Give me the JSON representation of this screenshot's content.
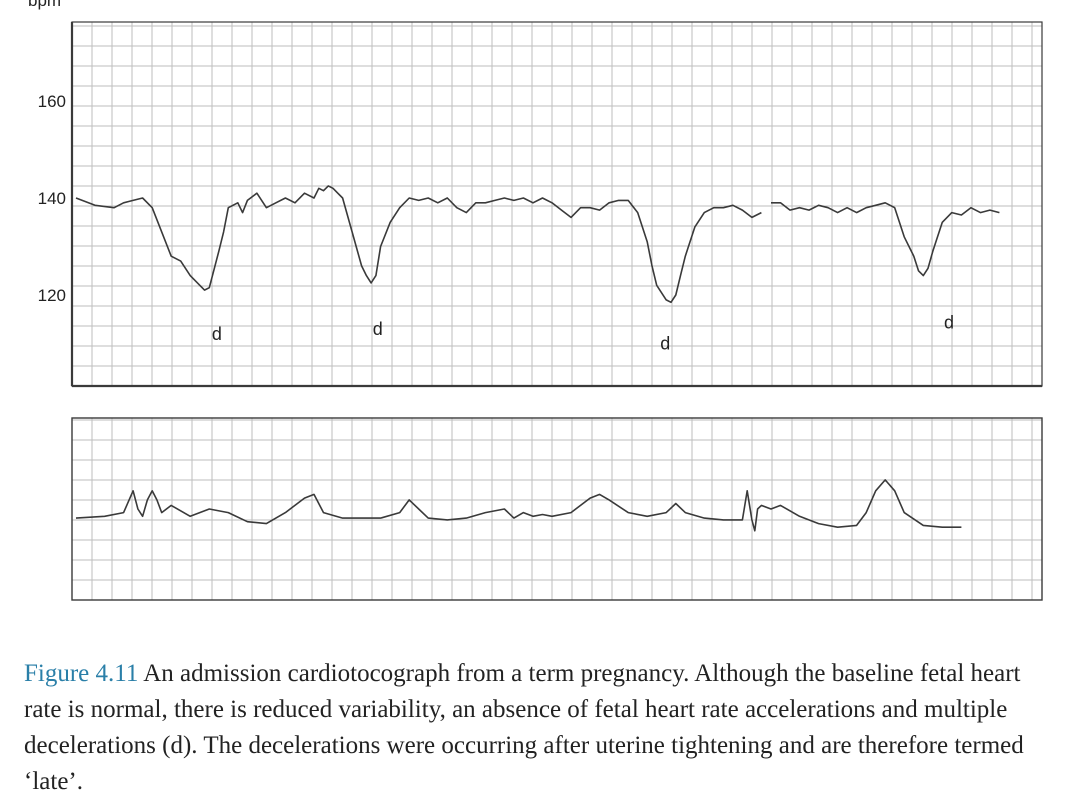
{
  "chart_data": [
    {
      "type": "line",
      "ylabel": "bpm",
      "yticks": [
        120,
        140,
        160
      ],
      "ylim": [
        102,
        176
      ],
      "xlim": [
        0,
        100
      ],
      "grid": true,
      "series": [
        {
          "segments": [
            [
              [
                0,
                140
              ],
              [
                2,
                138.5
              ],
              [
                4,
                138
              ],
              [
                5,
                139
              ],
              [
                6,
                139.5
              ],
              [
                7,
                140
              ],
              [
                8,
                138
              ],
              [
                9,
                133
              ],
              [
                10,
                128
              ],
              [
                11,
                127
              ],
              [
                12,
                124
              ],
              [
                13,
                122
              ],
              [
                13.5,
                121
              ],
              [
                14,
                121.5
              ],
              [
                15,
                129
              ],
              [
                15.5,
                133
              ],
              [
                16,
                138
              ],
              [
                17,
                139
              ],
              [
                17.5,
                137
              ],
              [
                18,
                139.5
              ],
              [
                19,
                141
              ],
              [
                20,
                138
              ],
              [
                21,
                139
              ],
              [
                22,
                140
              ],
              [
                23,
                139
              ],
              [
                24,
                141
              ],
              [
                25,
                140
              ],
              [
                25.5,
                142
              ],
              [
                26,
                141.5
              ],
              [
                26.5,
                142.5
              ],
              [
                27,
                142
              ],
              [
                27.5,
                141
              ],
              [
                28,
                140
              ],
              [
                29,
                133
              ],
              [
                30,
                126
              ],
              [
                30.5,
                124
              ],
              [
                31,
                122.5
              ],
              [
                31.5,
                124
              ],
              [
                32,
                130
              ],
              [
                33,
                135
              ],
              [
                34,
                138
              ],
              [
                35,
                140
              ],
              [
                36,
                139.5
              ],
              [
                37,
                140
              ],
              [
                38,
                139
              ],
              [
                39,
                140
              ],
              [
                40,
                138
              ],
              [
                41,
                137
              ],
              [
                42,
                139
              ],
              [
                43,
                139
              ],
              [
                44,
                139.5
              ],
              [
                45,
                140
              ],
              [
                46,
                139.5
              ],
              [
                47,
                140
              ],
              [
                48,
                139
              ],
              [
                49,
                140
              ],
              [
                50,
                139
              ],
              [
                51,
                137.5
              ],
              [
                52,
                136
              ],
              [
                53,
                138
              ],
              [
                54,
                138
              ],
              [
                55,
                137.5
              ],
              [
                56,
                139
              ],
              [
                57,
                139.5
              ],
              [
                58,
                139.5
              ],
              [
                59,
                137
              ],
              [
                60,
                131
              ],
              [
                60.5,
                126
              ],
              [
                61,
                122
              ],
              [
                62,
                119
              ],
              [
                62.5,
                118.5
              ],
              [
                63,
                120
              ],
              [
                63.5,
                124
              ],
              [
                64,
                128
              ],
              [
                65,
                134
              ],
              [
                66,
                137
              ],
              [
                67,
                138
              ],
              [
                68,
                138
              ],
              [
                69,
                138.5
              ],
              [
                70,
                137.5
              ],
              [
                71,
                136
              ],
              [
                72,
                137
              ]
            ],
            [
              [
                73,
                139
              ],
              [
                74,
                139
              ],
              [
                75,
                137.5
              ],
              [
                76,
                138
              ],
              [
                77,
                137.5
              ],
              [
                78,
                138.5
              ],
              [
                79,
                138
              ],
              [
                80,
                137
              ],
              [
                81,
                138
              ],
              [
                82,
                137
              ],
              [
                83,
                138
              ],
              [
                84,
                138.5
              ],
              [
                85,
                139
              ],
              [
                86,
                138
              ],
              [
                87,
                132
              ],
              [
                88,
                128
              ],
              [
                88.5,
                125
              ],
              [
                89,
                124
              ],
              [
                89.5,
                125.5
              ],
              [
                90,
                129
              ],
              [
                91,
                135
              ],
              [
                92,
                137
              ],
              [
                93,
                136.5
              ],
              [
                94,
                138
              ],
              [
                95,
                137
              ],
              [
                96,
                137.5
              ],
              [
                97,
                137
              ]
            ]
          ]
        },
        {
          "segments": [
            [
              [
                0,
                45
              ],
              [
                3,
                46
              ],
              [
                5,
                48
              ],
              [
                6,
                60
              ],
              [
                6.5,
                50
              ],
              [
                7,
                46
              ],
              [
                7.5,
                55
              ],
              [
                8,
                60
              ],
              [
                8.5,
                55
              ],
              [
                9,
                48
              ],
              [
                10,
                52
              ],
              [
                12,
                46
              ],
              [
                14,
                50
              ],
              [
                16,
                48
              ],
              [
                18,
                43
              ],
              [
                20,
                42
              ],
              [
                22,
                48
              ],
              [
                24,
                56
              ],
              [
                25,
                58
              ],
              [
                26,
                48
              ],
              [
                28,
                45
              ],
              [
                30,
                45
              ],
              [
                32,
                45
              ],
              [
                34,
                48
              ],
              [
                35,
                55
              ],
              [
                36,
                50
              ],
              [
                37,
                45
              ],
              [
                39,
                44
              ],
              [
                41,
                45
              ],
              [
                43,
                48
              ],
              [
                45,
                50
              ],
              [
                46,
                45
              ],
              [
                47,
                48
              ],
              [
                48,
                46
              ],
              [
                49,
                47
              ],
              [
                50,
                46
              ],
              [
                52,
                48
              ],
              [
                54,
                56
              ],
              [
                55,
                58
              ],
              [
                56,
                55
              ],
              [
                58,
                48
              ],
              [
                60,
                46
              ],
              [
                62,
                48
              ],
              [
                63,
                53
              ],
              [
                64,
                48
              ],
              [
                66,
                45
              ],
              [
                68,
                44
              ],
              [
                70,
                44
              ],
              [
                70.5,
                60
              ],
              [
                71,
                44
              ],
              [
                71.3,
                38
              ],
              [
                71.6,
                50
              ],
              [
                72,
                52
              ],
              [
                73,
                50
              ],
              [
                74,
                52
              ],
              [
                76,
                46
              ],
              [
                78,
                42
              ],
              [
                80,
                40
              ],
              [
                82,
                41
              ],
              [
                83,
                48
              ],
              [
                84,
                60
              ],
              [
                85,
                66
              ],
              [
                86,
                60
              ],
              [
                87,
                48
              ],
              [
                89,
                41
              ],
              [
                91,
                40
              ],
              [
                93,
                40
              ]
            ]
          ]
        },
        {
          "series_ref": "dlabels",
          "points": [
            [
              14.8,
              112
            ],
            [
              31.7,
              113
            ],
            [
              61.9,
              110
            ],
            [
              91.7,
              114.3
            ]
          ]
        }
      ]
    }
  ],
  "annotations": {
    "decel_label": "d",
    "count": 4
  },
  "caption": {
    "figure_label": "Figure 4.11",
    "text": " An admission cardiotocograph from a term pregnancy. Although the baseline fetal heart rate is normal, there is reduced variability, an absence of fetal heart rate accelerations and multiple decelerations (d). The decelerations were occurring after uterine tightening and are therefore termed ‘late’."
  },
  "colors": {
    "trace": "#3a3a3a",
    "grid": "#bdbdbd",
    "frame": "#3a3a3a",
    "figure_label": "#2a7fa8"
  }
}
